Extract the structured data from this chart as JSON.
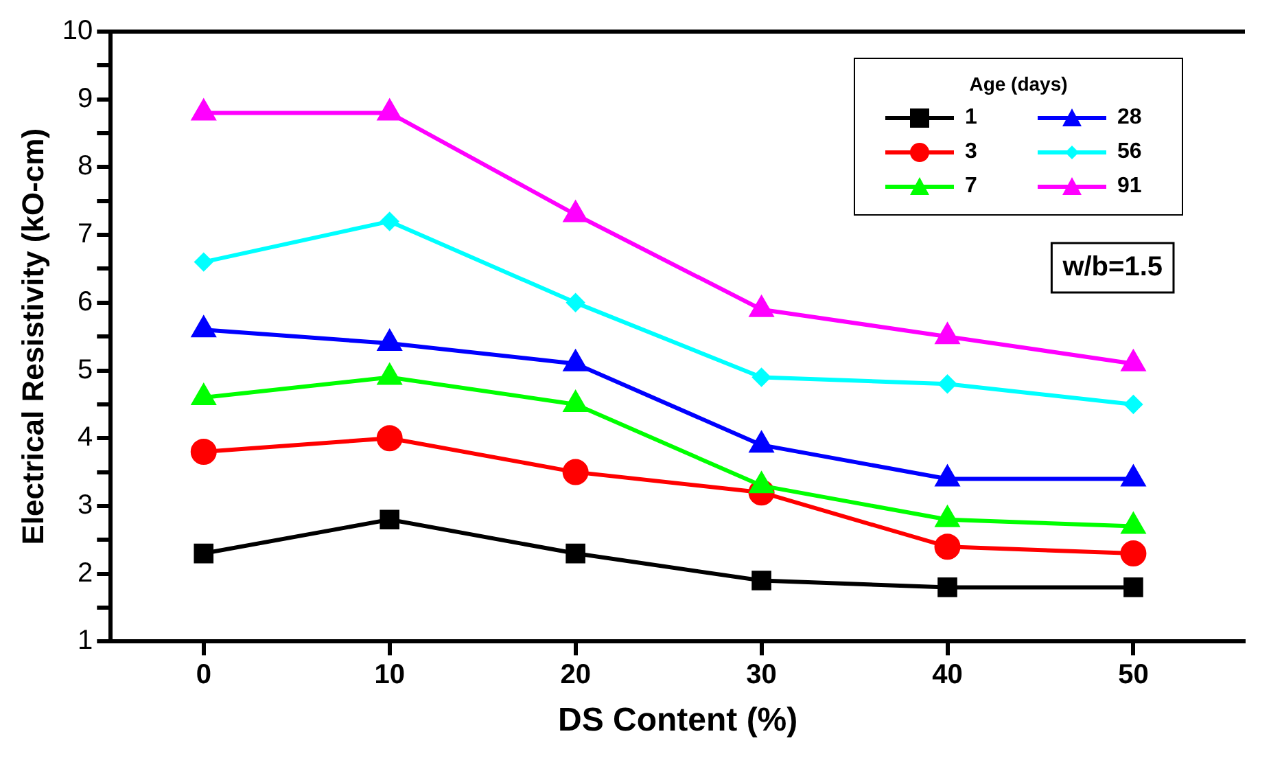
{
  "chart_data": {
    "type": "line",
    "xlabel": "DS Content (%)",
    "ylabel": "Electrical Resistivity (kO-cm)",
    "legend_title": "Age (days)",
    "x": [
      0,
      10,
      20,
      30,
      40,
      50
    ],
    "xlim": [
      -5,
      56
    ],
    "xticks": [
      0,
      10,
      20,
      30,
      40,
      50
    ],
    "ylim": [
      1,
      10
    ],
    "yticks": [
      1,
      {
        "value": 1.5,
        "label": null
      },
      2,
      {
        "value": 2.5,
        "label": null
      },
      3,
      {
        "value": 3.5,
        "label": null
      },
      4,
      {
        "value": 4.5,
        "label": null
      },
      5,
      {
        "value": 5.5,
        "label": null
      },
      6,
      {
        "value": 6.5,
        "label": null
      },
      7,
      {
        "value": 7.5,
        "label": null
      },
      8,
      {
        "value": 8.5,
        "label": null
      },
      9,
      {
        "value": 9.5,
        "label": null
      },
      10
    ],
    "grid": false,
    "legend": "top right",
    "line_style": "solid",
    "series": [
      {
        "name": "1",
        "color": "#000000",
        "marker": "square",
        "values": [
          2.3,
          2.8,
          2.3,
          1.9,
          1.8,
          1.8
        ]
      },
      {
        "name": "3",
        "color": "#ff0000",
        "marker": "circle",
        "values": [
          3.8,
          4.0,
          3.5,
          3.2,
          2.4,
          2.3
        ]
      },
      {
        "name": "7",
        "color": "#00ff00",
        "marker": "triangle",
        "values": [
          4.6,
          4.9,
          4.5,
          3.3,
          2.8,
          2.7
        ]
      },
      {
        "name": "28",
        "color": "#0000ff",
        "marker": "triangle",
        "values": [
          5.6,
          5.4,
          5.1,
          3.9,
          3.4,
          3.4
        ]
      },
      {
        "name": "56",
        "color": "#00ffff",
        "marker": "diamond",
        "values": [
          6.6,
          7.2,
          6.0,
          4.9,
          4.8,
          4.5
        ]
      },
      {
        "name": "91",
        "color": "#ff00ff",
        "marker": "triangle",
        "values": [
          8.8,
          8.8,
          7.3,
          5.9,
          5.5,
          5.1
        ]
      }
    ],
    "annotations": [
      "w/b=1.5"
    ]
  }
}
